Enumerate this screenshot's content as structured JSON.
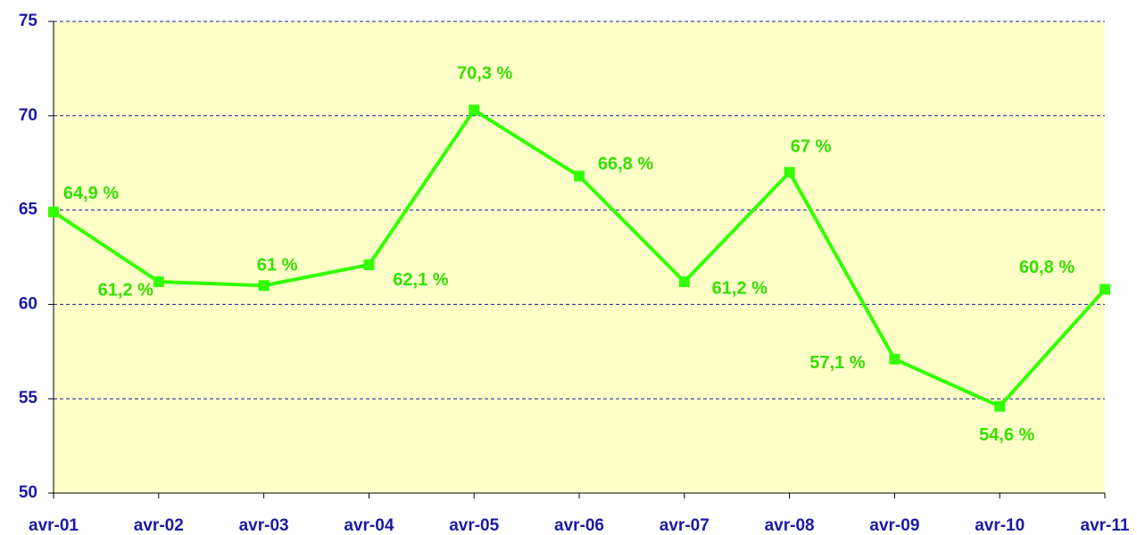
{
  "chart_data": {
    "type": "line",
    "categories": [
      "avr-01",
      "avr-02",
      "avr-03",
      "avr-04",
      "avr-05",
      "avr-06",
      "avr-07",
      "avr-08",
      "avr-09",
      "avr-10",
      "avr-11"
    ],
    "series": [
      {
        "color": "#33ff00",
        "values": [
          64.9,
          61.2,
          61,
          62.1,
          70.3,
          66.8,
          61.2,
          67,
          57.1,
          54.6,
          60.8
        ],
        "value_labels": [
          "64,9 %",
          "61,2 %",
          "61 %",
          "62,1 %",
          "70,3 %",
          "66,8 %",
          "61,2 %",
          "67 %",
          "57,1 %",
          "54,6 %",
          "60,8 %"
        ]
      }
    ],
    "ylim": [
      50,
      75
    ],
    "yticks": [
      50,
      55,
      60,
      65,
      70,
      75
    ],
    "grid": true
  }
}
